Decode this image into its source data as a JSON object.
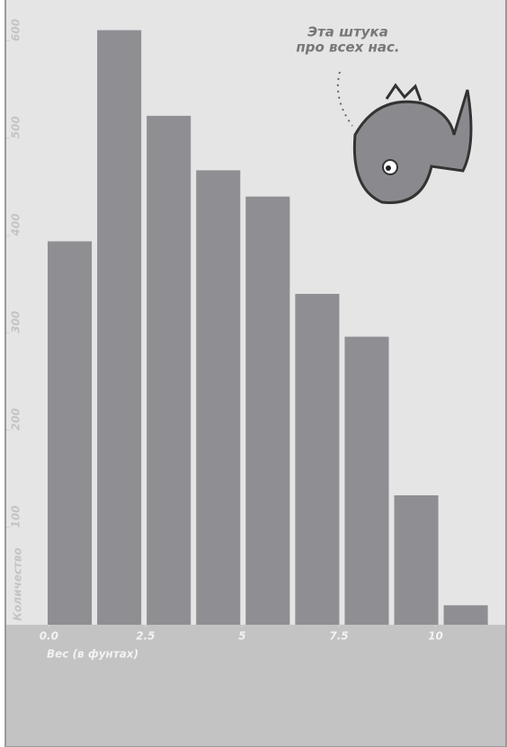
{
  "chart_data": {
    "type": "histogram",
    "annotation": [
      "Эта штука",
      "про всех нас."
    ],
    "xlabel": "Вес (в фунтах)",
    "ylabel": "Количество",
    "bins": [
      -0.1,
      1.18,
      2.46,
      3.74,
      5.02,
      6.3,
      7.58,
      8.86,
      10.14,
      11.42
    ],
    "values": [
      394,
      611,
      523,
      467,
      440,
      340,
      296,
      133,
      20
    ],
    "color": "#8f8f93",
    "xlim": [
      -1.1,
      11.8
    ],
    "ylim": [
      0,
      642
    ],
    "xticks": [
      {
        "value": 0,
        "label": "0.0"
      },
      2.5,
      5,
      7.5,
      10
    ],
    "yticks": [
      100,
      200,
      300,
      400,
      500,
      600
    ]
  }
}
